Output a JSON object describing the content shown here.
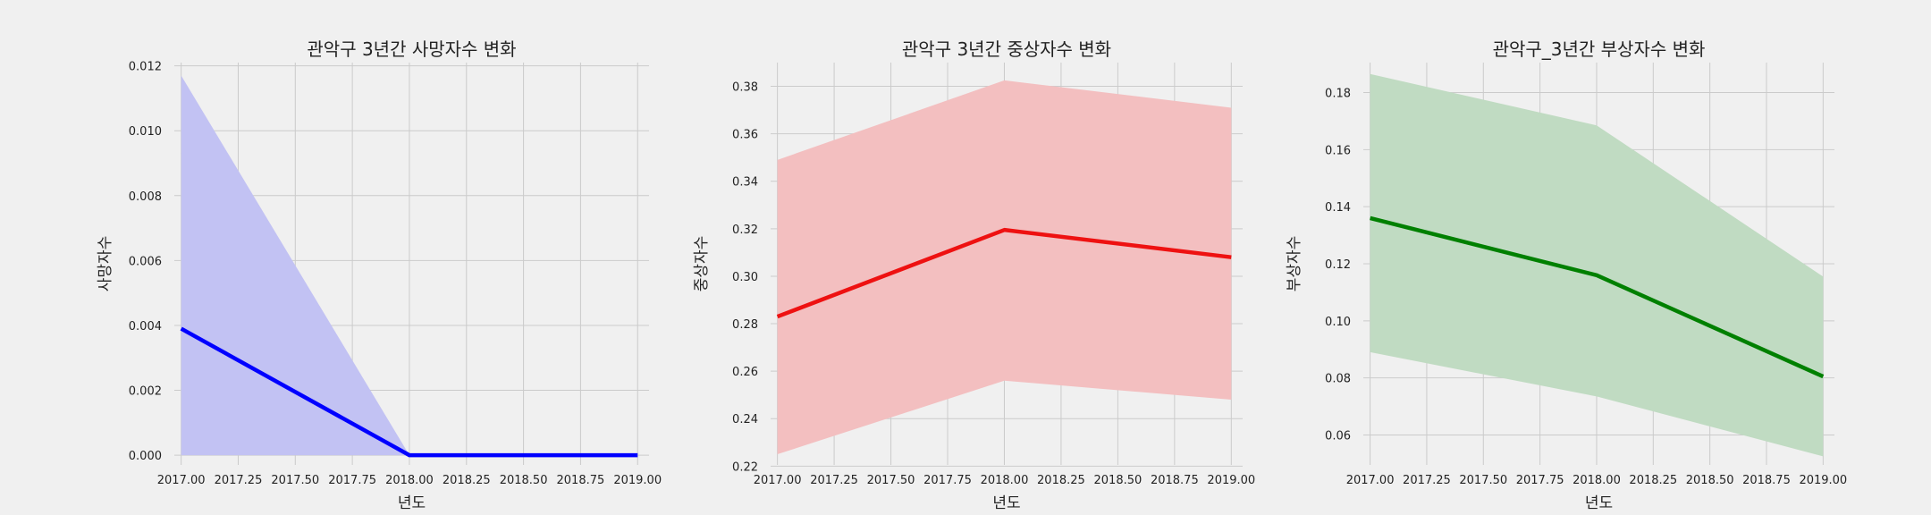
{
  "chart_data": [
    {
      "type": "line",
      "title": "관악구 3년간 사망자수 변화",
      "xlabel": "년도",
      "ylabel": "사망자수",
      "color": "#0000ff",
      "band_color": "#c2c2f3",
      "grid": true,
      "xlim": [
        2016.97,
        2019.05
      ],
      "ylim": [
        -0.0003,
        0.0121
      ],
      "x_ticks": [
        2017.0,
        2017.25,
        2017.5,
        2017.75,
        2018.0,
        2018.25,
        2018.5,
        2018.75,
        2019.0
      ],
      "x_tick_labels": [
        "2017.00",
        "2017.25",
        "2017.50",
        "2017.75",
        "2018.00",
        "2018.25",
        "2018.50",
        "2018.75",
        "2019.00"
      ],
      "y_ticks": [
        0.0,
        0.002,
        0.004,
        0.006,
        0.008,
        0.01,
        0.012
      ],
      "y_tick_labels": [
        "0.000",
        "0.002",
        "0.004",
        "0.006",
        "0.008",
        "0.010",
        "0.012"
      ],
      "x": [
        2017,
        2018,
        2019
      ],
      "y": [
        0.0039,
        0.0,
        0.0
      ],
      "ci_lower": [
        0.0,
        0.0,
        0.0
      ],
      "ci_upper": [
        0.0117,
        0.0,
        0.0
      ]
    },
    {
      "type": "line",
      "title": "관악구 3년간 중상자수 변화",
      "xlabel": "년도",
      "ylabel": "중상자수",
      "color": "#ee1111",
      "band_color": "#f3bfc0",
      "grid": true,
      "xlim": [
        2016.97,
        2019.05
      ],
      "ylim": [
        0.2205,
        0.39
      ],
      "x_ticks": [
        2017.0,
        2017.25,
        2017.5,
        2017.75,
        2018.0,
        2018.25,
        2018.5,
        2018.75,
        2019.0
      ],
      "x_tick_labels": [
        "2017.00",
        "2017.25",
        "2017.50",
        "2017.75",
        "2018.00",
        "2018.25",
        "2018.50",
        "2018.75",
        "2019.00"
      ],
      "y_ticks": [
        0.22,
        0.24,
        0.26,
        0.28,
        0.3,
        0.32,
        0.34,
        0.36,
        0.38
      ],
      "y_tick_labels": [
        "0.22",
        "0.24",
        "0.26",
        "0.28",
        "0.30",
        "0.32",
        "0.34",
        "0.36",
        "0.38"
      ],
      "x": [
        2017,
        2018,
        2019
      ],
      "y": [
        0.283,
        0.3195,
        0.308
      ],
      "ci_lower": [
        0.225,
        0.256,
        0.248
      ],
      "ci_upper": [
        0.349,
        0.3825,
        0.371
      ]
    },
    {
      "type": "line",
      "title": "관악구_3년간 부상자수 변화",
      "xlabel": "년도",
      "ylabel": "부상자수",
      "color": "#008000",
      "band_color": "#c0dbc2",
      "grid": true,
      "xlim": [
        2016.97,
        2019.05
      ],
      "ylim": [
        0.0495,
        0.1905
      ],
      "x_ticks": [
        2017.0,
        2017.25,
        2017.5,
        2017.75,
        2018.0,
        2018.25,
        2018.5,
        2018.75,
        2019.0
      ],
      "x_tick_labels": [
        "2017.00",
        "2017.25",
        "2017.50",
        "2017.75",
        "2018.00",
        "2018.25",
        "2018.50",
        "2018.75",
        "2019.00"
      ],
      "y_ticks": [
        0.06,
        0.08,
        0.1,
        0.12,
        0.14,
        0.16,
        0.18
      ],
      "y_tick_labels": [
        "0.06",
        "0.08",
        "0.10",
        "0.12",
        "0.14",
        "0.16",
        "0.18"
      ],
      "x": [
        2017,
        2018,
        2019
      ],
      "y": [
        0.136,
        0.116,
        0.0805
      ],
      "ci_lower": [
        0.089,
        0.0735,
        0.0525
      ],
      "ci_upper": [
        0.1865,
        0.1685,
        0.1155
      ]
    }
  ]
}
